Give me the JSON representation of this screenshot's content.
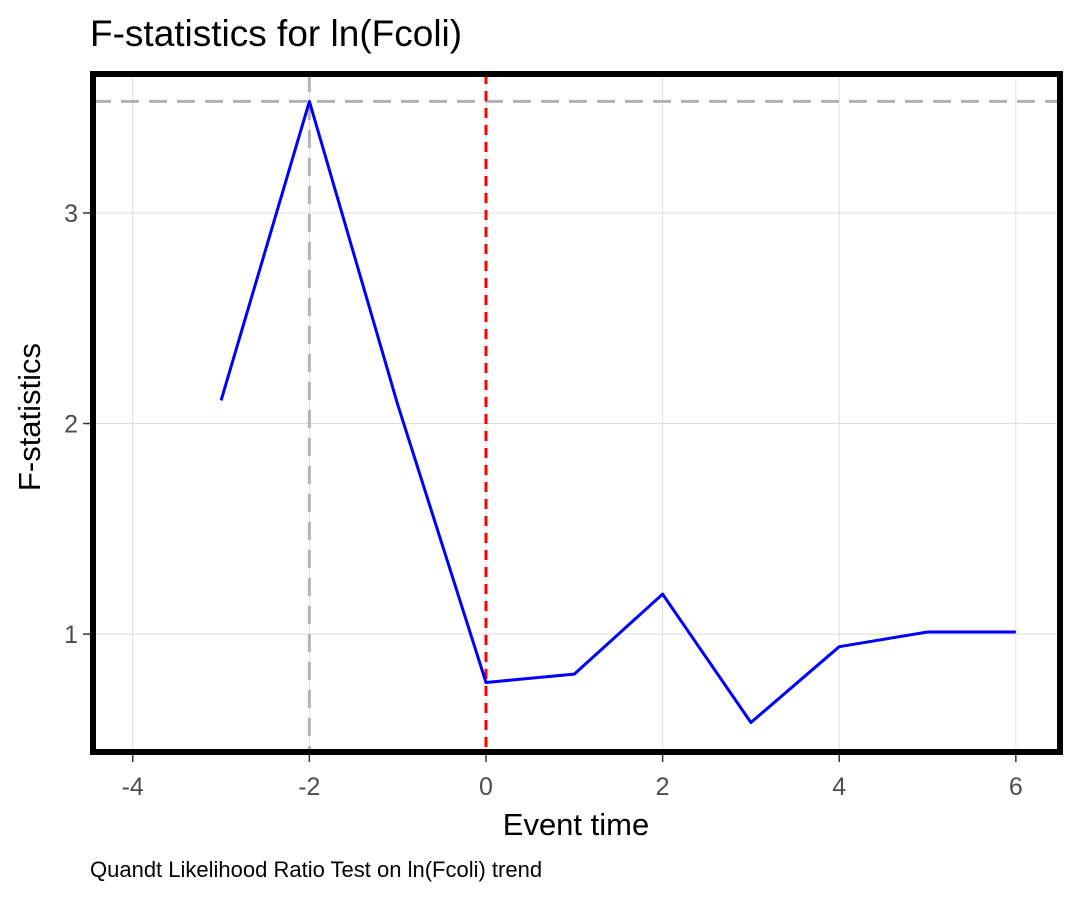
{
  "chart_data": {
    "type": "line",
    "title": "F-statistics for ln(Fcoli)",
    "xlabel": "Event time",
    "ylabel": "F-statistics",
    "caption": "Quandt Likelihood Ratio Test on ln(Fcoli) trend",
    "xlim": [
      -4.45,
      6.5
    ],
    "ylim": [
      0.44,
      3.66
    ],
    "x_ticks": [
      -4,
      -2,
      0,
      2,
      4,
      6
    ],
    "x_tick_labels": [
      "-4",
      "-2",
      "0",
      "2",
      "4",
      "6"
    ],
    "y_ticks": [
      1,
      2,
      3
    ],
    "y_tick_labels": [
      "1",
      "2",
      "3"
    ],
    "grid": true,
    "series": [
      {
        "color": "#0000ff",
        "x": [
          -3,
          -2,
          -1,
          0,
          1,
          2,
          3,
          4,
          5,
          6
        ],
        "y": [
          2.11,
          3.53,
          2.09,
          0.77,
          0.81,
          1.19,
          0.58,
          0.94,
          1.01,
          1.01
        ]
      }
    ],
    "reference_lines": {
      "max_value": 3.53,
      "max_event_time": -2,
      "event_time": 0,
      "reference_color": "#b3b3b3",
      "event_color": "#ff0000"
    }
  }
}
